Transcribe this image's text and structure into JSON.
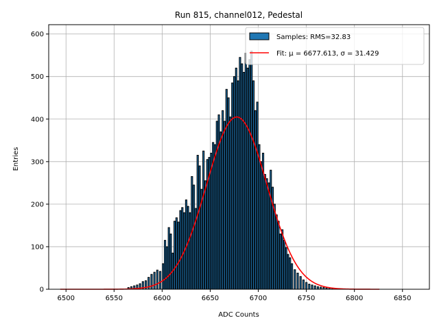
{
  "chart_data": {
    "type": "bar",
    "title": "Run 815, channel012, Pedestal",
    "xlabel": "ADC Counts",
    "ylabel": "Entries",
    "xlim": [
      6482,
      6878
    ],
    "ylim": [
      0,
      622
    ],
    "xticks": [
      6500,
      6550,
      6600,
      6650,
      6700,
      6750,
      6800,
      6850
    ],
    "yticks": [
      0,
      100,
      200,
      300,
      400,
      500,
      600
    ],
    "grid": true,
    "legend_position": "top-right",
    "series": [
      {
        "name": "Samples: RMS=32.83",
        "kind": "histogram",
        "color": "#1f77b4",
        "edge_color": "#000000",
        "bin_width": 1.5,
        "x": [
          6565,
          6568,
          6571,
          6574,
          6577,
          6580,
          6583,
          6586,
          6589,
          6592,
          6595,
          6598,
          6601,
          6603,
          6605,
          6607,
          6609,
          6611,
          6613,
          6615,
          6617,
          6619,
          6621,
          6623,
          6625,
          6627,
          6629,
          6631,
          6633,
          6635,
          6637,
          6639,
          6641,
          6643,
          6645,
          6647,
          6649,
          6651,
          6653,
          6655,
          6657,
          6659,
          6661,
          6663,
          6665,
          6667,
          6669,
          6671,
          6673,
          6675,
          6677,
          6679,
          6681,
          6683,
          6685,
          6687,
          6689,
          6691,
          6693,
          6695,
          6697,
          6699,
          6701,
          6703,
          6705,
          6707,
          6709,
          6711,
          6713,
          6715,
          6717,
          6719,
          6721,
          6723,
          6725,
          6727,
          6729,
          6731,
          6733,
          6735,
          6738,
          6741,
          6744,
          6747,
          6750,
          6753,
          6756,
          6759,
          6762,
          6765,
          6768,
          6771,
          6774,
          6777,
          6780
        ],
        "values": [
          4,
          6,
          8,
          10,
          13,
          18,
          20,
          28,
          35,
          40,
          45,
          42,
          60,
          115,
          100,
          145,
          130,
          85,
          160,
          168,
          158,
          185,
          192,
          180,
          210,
          195,
          180,
          265,
          245,
          190,
          315,
          290,
          235,
          325,
          255,
          305,
          310,
          320,
          345,
          340,
          395,
          410,
          370,
          420,
          395,
          470,
          450,
          405,
          485,
          500,
          520,
          490,
          545,
          530,
          510,
          555,
          520,
          540,
          560,
          490,
          420,
          440,
          340,
          300,
          320,
          270,
          260,
          250,
          280,
          240,
          200,
          175,
          160,
          130,
          140,
          115,
          98,
          82,
          74,
          60,
          46,
          38,
          30,
          22,
          16,
          12,
          10,
          8,
          6,
          5,
          4,
          3,
          3,
          2,
          2
        ]
      },
      {
        "name": "Fit: μ = 6677.613, σ = 31.429",
        "kind": "gaussian-fit",
        "color": "#ff0000",
        "mu": 6677.613,
        "sigma": 31.429,
        "amplitude": 405,
        "x_range": [
          6494,
          6826
        ]
      }
    ]
  }
}
